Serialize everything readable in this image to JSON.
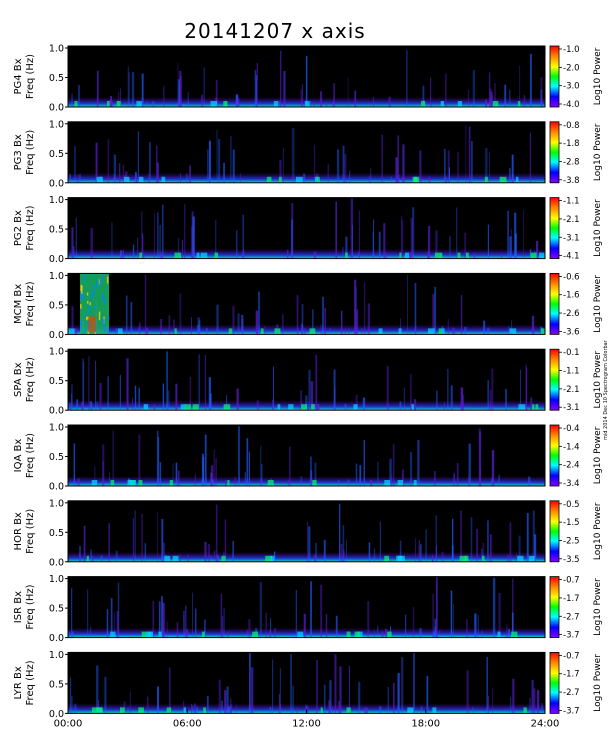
{
  "chart_data": {
    "type": "heatmap",
    "title": "20141207 x axis",
    "side_note": "mid 2014 Dec 10 Spectrogram Colorbar",
    "x_ticks": [
      "00:00",
      "06:00",
      "12:00",
      "18:00",
      "24:00"
    ],
    "xlim": [
      0,
      24
    ],
    "ylim": [
      0,
      1
    ],
    "y_ticks": [
      "0.0",
      "0.5",
      "1.0"
    ],
    "colorbar_label": "Log10 Power",
    "colors": {
      "background": "#000000",
      "frame": "#000000",
      "colorbar": [
        "#8800ff",
        "#0000ff",
        "#00ffff",
        "#00ff00",
        "#ffff00",
        "#ff8800",
        "#ff0000"
      ]
    },
    "panels": [
      {
        "station": "PG4",
        "ylabel_top": "PG4  Bx",
        "ylabel_bottom": "Freq (Hz)",
        "cbar_ticks": [
          "-1.0",
          "-2.0",
          "-3.0",
          "-4.0"
        ]
      },
      {
        "station": "PG3",
        "ylabel_top": "PG3  Bx",
        "ylabel_bottom": "Freq (Hz)",
        "cbar_ticks": [
          "-0.8",
          "-1.8",
          "-2.8",
          "-3.8"
        ]
      },
      {
        "station": "PG2",
        "ylabel_top": "PG2  Bx",
        "ylabel_bottom": "Freq (Hz)",
        "cbar_ticks": [
          "-1.1",
          "-2.1",
          "-3.1",
          "-4.1"
        ]
      },
      {
        "station": "MCM",
        "ylabel_top": "MCM  Bx",
        "ylabel_bottom": "Freq (Hz)",
        "cbar_ticks": [
          "-0.6",
          "-1.6",
          "-2.6",
          "-3.6"
        ]
      },
      {
        "station": "SPA",
        "ylabel_top": "SPA  Bx",
        "ylabel_bottom": "Freq (Hz)",
        "cbar_ticks": [
          "-0.1",
          "-1.1",
          "-2.1",
          "-3.1"
        ]
      },
      {
        "station": "IQA",
        "ylabel_top": "IQA  Bx",
        "ylabel_bottom": "Freq (Hz)",
        "cbar_ticks": [
          "-0.4",
          "-1.4",
          "-2.4",
          "-3.4"
        ]
      },
      {
        "station": "HOR",
        "ylabel_top": "HOR  Bx",
        "ylabel_bottom": "Freq (Hz)",
        "cbar_ticks": [
          "-0.5",
          "-1.5",
          "-2.5",
          "-3.5"
        ]
      },
      {
        "station": "ISR",
        "ylabel_top": "ISR  Bx",
        "ylabel_bottom": "Freq (Hz)",
        "cbar_ticks": [
          "-0.7",
          "-1.7",
          "-2.7",
          "-3.7"
        ]
      },
      {
        "station": "LYR",
        "ylabel_top": "LYR  Bx",
        "ylabel_bottom": "Freq (Hz)",
        "cbar_ticks": [
          "-0.7",
          "-1.7",
          "-2.7",
          "-3.7"
        ]
      }
    ]
  }
}
